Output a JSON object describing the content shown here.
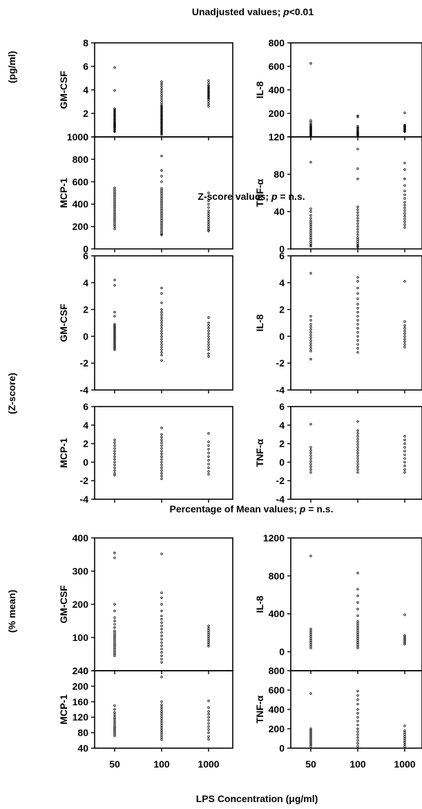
{
  "figure": {
    "x_axis_label": "LPS Concentration (μg/ml)",
    "x_categories": [
      "50",
      "100",
      "1000"
    ]
  },
  "sections": [
    {
      "title_prefix": "Unadjusted values; ",
      "p_symbol": "p",
      "title_suffix": "<0.01",
      "y_unit_label": "(pg/ml)"
    },
    {
      "title_prefix": "Z-score values; ",
      "p_symbol": "p",
      "title_suffix": " = n.s.",
      "y_unit_label": "(Z-score)"
    },
    {
      "title_prefix": "Percentage of Mean values; ",
      "p_symbol": "p",
      "title_suffix": " = n.s.",
      "y_unit_label": "(% mean)"
    }
  ],
  "chart_data": [
    {
      "type": "scatter",
      "section": 0,
      "ylabel": "GM-CSF",
      "ylim": [
        0,
        8
      ],
      "yticks": [
        0,
        2,
        4,
        6,
        8
      ],
      "categories": [
        "50",
        "100",
        "1000"
      ],
      "series": [
        {
          "x": "50",
          "values": [
            5.9,
            3.95,
            2.4,
            2.3,
            2.2,
            2.1,
            2.0,
            1.9,
            1.8,
            1.7,
            1.6,
            1.5,
            1.4,
            1.3,
            1.2,
            1.15,
            1.1,
            1.05,
            1.0,
            0.95,
            0.9,
            0.85,
            0.8,
            0.7,
            0.6,
            0.5,
            0.45
          ]
        },
        {
          "x": "100",
          "values": [
            4.7,
            4.5,
            4.3,
            4.1,
            3.9,
            3.7,
            3.5,
            3.3,
            3.1,
            2.9,
            2.7,
            2.6,
            2.5,
            2.4,
            2.3,
            2.2,
            2.1,
            2.0,
            1.9,
            1.8,
            1.7,
            1.6,
            1.5,
            1.4,
            1.3,
            1.2,
            1.1,
            1.0,
            0.9,
            0.8,
            0.7,
            0.6,
            0.5,
            0.4,
            0.3,
            0.2
          ]
        },
        {
          "x": "1000",
          "values": [
            4.8,
            4.6,
            4.4,
            4.3,
            4.2,
            4.1,
            4.0,
            3.9,
            3.8,
            3.7,
            3.6,
            3.5,
            3.4,
            3.3,
            3.2,
            3.0,
            2.8,
            2.6
          ]
        }
      ]
    },
    {
      "type": "scatter",
      "section": 0,
      "ylabel": "IL-8",
      "ylim": [
        0,
        800
      ],
      "yticks": [
        0,
        200,
        400,
        600,
        800
      ],
      "categories": [
        "50",
        "100",
        "1000"
      ],
      "series": [
        {
          "x": "50",
          "values": [
            625,
            140,
            125,
            110,
            100,
            90,
            85,
            80,
            75,
            70,
            65,
            60,
            55,
            50,
            45,
            40,
            35,
            30,
            25,
            20,
            15,
            10,
            5
          ]
        },
        {
          "x": "100",
          "values": [
            180,
            170,
            90,
            80,
            70,
            60,
            50,
            40,
            35,
            30,
            25,
            20,
            15,
            10,
            5
          ]
        },
        {
          "x": "1000",
          "values": [
            205,
            100,
            95,
            90,
            85,
            80,
            75,
            70,
            65,
            60,
            55,
            50,
            45
          ]
        }
      ]
    },
    {
      "type": "scatter",
      "section": 0,
      "ylabel": "MCP-1",
      "ylim": [
        0,
        1000
      ],
      "yticks": [
        0,
        200,
        400,
        600,
        800,
        1000
      ],
      "categories": [
        "50",
        "100",
        "1000"
      ],
      "series": [
        {
          "x": "50",
          "values": [
            545,
            530,
            515,
            500,
            485,
            470,
            455,
            440,
            425,
            410,
            395,
            380,
            365,
            350,
            335,
            320,
            305,
            290,
            275,
            260,
            245,
            230,
            215,
            200,
            180
          ]
        },
        {
          "x": "100",
          "values": [
            830,
            700,
            650,
            600,
            540,
            525,
            510,
            495,
            480,
            465,
            450,
            435,
            420,
            405,
            390,
            375,
            360,
            345,
            330,
            315,
            300,
            285,
            270,
            255,
            240,
            225,
            210,
            195,
            180,
            165,
            150,
            135,
            125
          ]
        },
        {
          "x": "1000",
          "values": [
            500,
            430,
            400,
            370,
            340,
            320,
            300,
            280,
            260,
            240,
            220,
            200,
            185,
            170,
            160
          ]
        }
      ]
    },
    {
      "type": "scatter",
      "section": 0,
      "ylabel": "TNF-α",
      "ylim": [
        0,
        120
      ],
      "yticks": [
        0,
        40,
        80,
        120
      ],
      "categories": [
        "50",
        "100",
        "1000"
      ],
      "series": [
        {
          "x": "50",
          "values": [
            93,
            43,
            40,
            36,
            33,
            30,
            28,
            26,
            24,
            22,
            20,
            18,
            16,
            14,
            12,
            10,
            8,
            6,
            4,
            3
          ]
        },
        {
          "x": "100",
          "values": [
            107,
            86,
            75,
            45,
            42,
            39,
            36,
            33,
            30,
            27,
            24,
            21,
            18,
            15,
            12,
            10,
            8,
            6,
            4,
            3,
            2
          ]
        },
        {
          "x": "1000",
          "values": [
            92,
            85,
            75,
            68,
            62,
            58,
            54,
            50,
            47,
            44,
            41,
            38,
            35,
            32,
            29,
            26,
            23
          ]
        }
      ]
    },
    {
      "type": "scatter",
      "section": 1,
      "ylabel": "GM-CSF",
      "ylim": [
        -4,
        6
      ],
      "yticks": [
        -4,
        -2,
        0,
        2,
        4,
        6
      ],
      "categories": [
        "50",
        "100",
        "1000"
      ],
      "series": [
        {
          "x": "50",
          "values": [
            4.2,
            3.8,
            1.8,
            1.5,
            0.9,
            0.8,
            0.7,
            0.6,
            0.5,
            0.4,
            0.3,
            0.2,
            0.1,
            0.0,
            -0.1,
            -0.2,
            -0.3,
            -0.4,
            -0.5,
            -0.6,
            -0.7,
            -0.8,
            -0.9,
            -1.0
          ]
        },
        {
          "x": "100",
          "values": [
            3.6,
            3.2,
            2.5,
            2.0,
            1.8,
            1.6,
            1.4,
            1.2,
            1.0,
            0.8,
            0.6,
            0.4,
            0.2,
            0.0,
            -0.2,
            -0.4,
            -0.6,
            -0.8,
            -1.0,
            -1.2,
            -1.4,
            -1.8
          ]
        },
        {
          "x": "1000",
          "values": [
            1.4,
            1.0,
            0.8,
            0.6,
            0.4,
            0.2,
            0.0,
            -0.2,
            -0.4,
            -0.6,
            -0.8,
            -1.0,
            -1.3,
            -1.5
          ]
        }
      ]
    },
    {
      "type": "scatter",
      "section": 1,
      "ylabel": "IL-8",
      "ylim": [
        -4,
        6
      ],
      "yticks": [
        -4,
        -2,
        0,
        2,
        4,
        6
      ],
      "categories": [
        "50",
        "100",
        "1000"
      ],
      "series": [
        {
          "x": "50",
          "values": [
            4.7,
            1.5,
            1.2,
            0.9,
            0.7,
            0.5,
            0.3,
            0.1,
            -0.1,
            -0.3,
            -0.5,
            -0.7,
            -0.9,
            -1.1,
            -1.7
          ]
        },
        {
          "x": "100",
          "values": [
            4.4,
            4.1,
            3.6,
            3.2,
            2.8,
            2.4,
            2.1,
            1.8,
            1.5,
            1.2,
            0.9,
            0.6,
            0.3,
            0.0,
            -0.3,
            -0.6,
            -0.9,
            -1.2
          ]
        },
        {
          "x": "1000",
          "values": [
            4.1,
            1.1,
            0.8,
            0.6,
            0.4,
            0.2,
            0.0,
            -0.2,
            -0.4,
            -0.6,
            -0.8
          ]
        }
      ]
    },
    {
      "type": "scatter",
      "section": 1,
      "ylabel": "MCP-1",
      "ylim": [
        -4,
        6
      ],
      "yticks": [
        -4,
        -2,
        0,
        2,
        4,
        6
      ],
      "categories": [
        "50",
        "100",
        "1000"
      ],
      "series": [
        {
          "x": "50",
          "values": [
            2.4,
            2.1,
            1.8,
            1.5,
            1.2,
            0.9,
            0.6,
            0.3,
            0.0,
            -0.3,
            -0.6,
            -0.9,
            -1.2,
            -1.4
          ]
        },
        {
          "x": "100",
          "values": [
            3.7,
            3.0,
            2.7,
            2.4,
            2.1,
            1.8,
            1.5,
            1.2,
            0.9,
            0.6,
            0.3,
            0.0,
            -0.3,
            -0.6,
            -0.9,
            -1.2,
            -1.5,
            -1.8
          ]
        },
        {
          "x": "1000",
          "values": [
            3.1,
            2.2,
            1.8,
            1.4,
            1.0,
            0.6,
            0.2,
            -0.2,
            -0.6,
            -1.0,
            -1.3
          ]
        }
      ]
    },
    {
      "type": "scatter",
      "section": 1,
      "ylabel": "TNF-α",
      "ylim": [
        -4,
        6
      ],
      "yticks": [
        -4,
        -2,
        0,
        2,
        4,
        6
      ],
      "categories": [
        "50",
        "100",
        "1000"
      ],
      "series": [
        {
          "x": "50",
          "values": [
            4.1,
            1.6,
            1.3,
            1.0,
            0.7,
            0.4,
            0.1,
            -0.2,
            -0.5,
            -0.8,
            -1.1
          ]
        },
        {
          "x": "100",
          "values": [
            4.4,
            3.4,
            3.1,
            2.8,
            2.5,
            2.2,
            1.9,
            1.6,
            1.3,
            1.0,
            0.7,
            0.4,
            0.1,
            -0.2,
            -0.5,
            -0.8,
            -1.1
          ]
        },
        {
          "x": "1000",
          "values": [
            2.8,
            2.4,
            2.0,
            1.6,
            1.2,
            0.8,
            0.4,
            0.0,
            -0.4,
            -0.8,
            -1.1
          ]
        }
      ]
    },
    {
      "type": "scatter",
      "section": 2,
      "ylabel": "GM-CSF",
      "ylim": [
        0,
        400
      ],
      "yticks": [
        0,
        100,
        200,
        300,
        400
      ],
      "categories": [
        "50",
        "100",
        "1000"
      ],
      "series": [
        {
          "x": "50",
          "values": [
            355,
            340,
            200,
            180,
            160,
            150,
            140,
            130,
            120,
            115,
            110,
            105,
            100,
            95,
            90,
            85,
            80,
            75,
            70,
            65,
            60,
            55,
            50,
            45
          ]
        },
        {
          "x": "100",
          "values": [
            352,
            235,
            220,
            200,
            180,
            165,
            155,
            145,
            135,
            125,
            115,
            105,
            95,
            85,
            75,
            65,
            55,
            45,
            35,
            25
          ]
        },
        {
          "x": "1000",
          "values": [
            135,
            128,
            122,
            116,
            110,
            104,
            98,
            92,
            86,
            80,
            74
          ]
        }
      ]
    },
    {
      "type": "scatter",
      "section": 2,
      "ylabel": "IL-8",
      "ylim": [
        -200,
        1200
      ],
      "yticks": [
        0,
        400,
        800,
        1200
      ],
      "categories": [
        "50",
        "100",
        "1000"
      ],
      "series": [
        {
          "x": "50",
          "values": [
            1010,
            240,
            220,
            200,
            180,
            160,
            140,
            120,
            100,
            80,
            60,
            40
          ]
        },
        {
          "x": "100",
          "values": [
            830,
            660,
            590,
            520,
            450,
            380,
            320,
            300,
            280,
            260,
            240,
            220,
            200,
            180,
            160,
            140,
            120,
            100,
            80,
            60,
            40
          ]
        },
        {
          "x": "1000",
          "values": [
            390,
            170,
            155,
            140,
            125,
            110,
            95,
            80
          ]
        }
      ]
    },
    {
      "type": "scatter",
      "section": 2,
      "ylabel": "MCP-1",
      "ylim": [
        40,
        240
      ],
      "yticks": [
        40,
        80,
        120,
        160,
        200,
        240
      ],
      "categories": [
        "50",
        "100",
        "1000"
      ],
      "series": [
        {
          "x": "50",
          "values": [
            150,
            140,
            132,
            126,
            120,
            115,
            110,
            105,
            100,
            96,
            92,
            88,
            84,
            80,
            76,
            72
          ]
        },
        {
          "x": "100",
          "values": [
            224,
            160,
            152,
            146,
            140,
            134,
            128,
            122,
            116,
            110,
            104,
            98,
            92,
            86,
            80,
            74,
            68,
            62
          ]
        },
        {
          "x": "1000",
          "values": [
            162,
            145,
            135,
            128,
            120,
            112,
            104,
            96,
            88,
            80,
            70,
            63
          ]
        }
      ]
    },
    {
      "type": "scatter",
      "section": 2,
      "ylabel": "TNF-α",
      "ylim": [
        0,
        800
      ],
      "yticks": [
        0,
        200,
        400,
        600,
        800
      ],
      "categories": [
        "50",
        "100",
        "1000"
      ],
      "series": [
        {
          "x": "50",
          "values": [
            565,
            200,
            185,
            170,
            155,
            140,
            125,
            110,
            95,
            80,
            65,
            50,
            35,
            20
          ]
        },
        {
          "x": "100",
          "values": [
            590,
            545,
            500,
            455,
            400,
            360,
            320,
            280,
            240,
            200,
            170,
            140,
            110,
            80,
            50,
            20
          ]
        },
        {
          "x": "1000",
          "values": [
            230,
            180,
            160,
            140,
            120,
            100,
            80,
            60,
            40,
            20
          ]
        }
      ]
    }
  ]
}
